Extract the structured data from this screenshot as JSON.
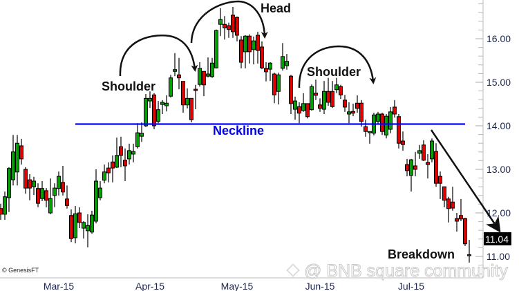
{
  "chart_data": {
    "type": "candlestick",
    "title": "",
    "xlabel": "",
    "ylabel": "",
    "ylim": [
      10.51,
      16.89
    ],
    "y_ticks": [
      "11.00",
      "12.00",
      "13.00",
      "14.00",
      "15.00",
      "16.00"
    ],
    "y_minor_step": 0.2,
    "x_ticks": [
      {
        "label": "Mar-15",
        "at_candle": 14
      },
      {
        "label": "Apr-15",
        "at_candle": 36
      },
      {
        "label": "May-15",
        "at_candle": 57
      },
      {
        "label": "Jun-15",
        "at_candle": 77
      },
      {
        "label": "Jul-15",
        "at_candle": 99
      }
    ],
    "grid": false,
    "colors": {
      "up": "#00a000",
      "down": "#e00000",
      "wick": "#000000",
      "neckline": "#0000ff"
    },
    "ohlc_fields": [
      "open",
      "high",
      "low",
      "close"
    ],
    "candles": [
      [
        12.1,
        12.21,
        11.84,
        11.97
      ],
      [
        11.97,
        12.49,
        11.84,
        12.37
      ],
      [
        12.35,
        13.05,
        12.02,
        13.02
      ],
      [
        12.76,
        13.79,
        12.63,
        13.4
      ],
      [
        12.94,
        13.79,
        12.63,
        13.6
      ],
      [
        13.54,
        13.7,
        13.11,
        13.24
      ],
      [
        13.0,
        13.05,
        12.44,
        12.57
      ],
      [
        12.76,
        12.89,
        12.29,
        12.57
      ],
      [
        12.6,
        12.83,
        12.41,
        12.73
      ],
      [
        12.56,
        12.68,
        12.13,
        12.22
      ],
      [
        12.33,
        12.73,
        12.27,
        12.56
      ],
      [
        12.51,
        12.57,
        12.13,
        12.29
      ],
      [
        12.0,
        12.79,
        11.97,
        12.33
      ],
      [
        12.4,
        12.68,
        12.13,
        12.57
      ],
      [
        12.56,
        12.95,
        12.4,
        12.84
      ],
      [
        12.7,
        13.08,
        12.4,
        12.48
      ],
      [
        12.32,
        12.63,
        12.1,
        12.17
      ],
      [
        11.94,
        12.08,
        11.33,
        11.41
      ],
      [
        11.43,
        12.16,
        11.3,
        11.98
      ],
      [
        12.0,
        12.13,
        11.65,
        11.78
      ],
      [
        11.65,
        11.81,
        11.41,
        11.78
      ],
      [
        11.59,
        11.97,
        11.21,
        11.71
      ],
      [
        11.56,
        12.05,
        11.52,
        11.95
      ],
      [
        11.81,
        13.0,
        11.76,
        12.73
      ],
      [
        12.35,
        12.73,
        12.29,
        12.57
      ],
      [
        12.75,
        13.11,
        12.68,
        12.94
      ],
      [
        13.03,
        13.16,
        12.7,
        12.92
      ],
      [
        13.17,
        13.32,
        12.7,
        13.03
      ],
      [
        13.05,
        13.73,
        13.03,
        13.32
      ],
      [
        13.52,
        13.75,
        13.05,
        13.32
      ],
      [
        13.21,
        13.48,
        12.73,
        13.08
      ],
      [
        13.24,
        13.59,
        13.11,
        13.43
      ],
      [
        13.35,
        13.59,
        13.16,
        13.41
      ],
      [
        13.52,
        14.06,
        13.48,
        13.84
      ],
      [
        13.76,
        14.08,
        13.63,
        13.83
      ],
      [
        14.0,
        14.73,
        13.97,
        14.63
      ],
      [
        14.57,
        14.79,
        14.41,
        14.63
      ],
      [
        14.71,
        14.75,
        13.92,
        14.0
      ],
      [
        14.1,
        14.57,
        14.06,
        14.37
      ],
      [
        14.49,
        14.59,
        14.27,
        14.54
      ],
      [
        14.46,
        14.7,
        14.33,
        14.52
      ],
      [
        14.68,
        15.17,
        14.65,
        15.1
      ],
      [
        15.25,
        15.67,
        15.14,
        15.29
      ],
      [
        15.17,
        15.56,
        14.84,
        15.1
      ],
      [
        15.02,
        15.02,
        14.3,
        14.48
      ],
      [
        14.48,
        14.86,
        14.4,
        14.63
      ],
      [
        14.63,
        14.63,
        14.08,
        14.14
      ],
      [
        14.84,
        14.94,
        14.38,
        14.81
      ],
      [
        14.95,
        15.46,
        14.9,
        15.32
      ],
      [
        15.25,
        15.25,
        14.68,
        14.94
      ],
      [
        15.14,
        15.57,
        15.11,
        15.19
      ],
      [
        15.13,
        15.56,
        15.1,
        15.44
      ],
      [
        15.33,
        16.21,
        15.32,
        16.19
      ],
      [
        16.33,
        16.7,
        16.06,
        16.44
      ],
      [
        16.33,
        16.52,
        15.98,
        16.25
      ],
      [
        16.3,
        16.37,
        16.02,
        16.21
      ],
      [
        16.54,
        16.73,
        16.02,
        16.16
      ],
      [
        16.49,
        16.51,
        15.94,
        16.08
      ],
      [
        15.97,
        16.06,
        15.32,
        15.46
      ],
      [
        15.7,
        16.08,
        15.32,
        16.06
      ],
      [
        16.06,
        16.1,
        15.43,
        15.7
      ],
      [
        15.75,
        16.05,
        15.41,
        15.95
      ],
      [
        16.08,
        16.16,
        15.43,
        15.73
      ],
      [
        15.81,
        15.94,
        15.3,
        15.33
      ],
      [
        15.32,
        15.46,
        15.02,
        15.24
      ],
      [
        15.3,
        15.46,
        15.03,
        15.44
      ],
      [
        15.19,
        15.22,
        14.52,
        14.71
      ],
      [
        14.79,
        15.22,
        14.49,
        15.17
      ],
      [
        15.32,
        15.9,
        15.27,
        15.59
      ],
      [
        15.38,
        15.65,
        15.29,
        15.48
      ],
      [
        15.14,
        15.17,
        14.27,
        14.51
      ],
      [
        14.38,
        14.67,
        14.14,
        14.57
      ],
      [
        14.44,
        14.54,
        14.06,
        14.29
      ],
      [
        14.35,
        14.75,
        14.32,
        14.51
      ],
      [
        14.51,
        14.51,
        14.17,
        14.21
      ],
      [
        14.37,
        14.95,
        14.35,
        14.9
      ],
      [
        14.75,
        15.06,
        14.59,
        14.7
      ],
      [
        14.48,
        14.63,
        14.32,
        14.4
      ],
      [
        14.38,
        15.03,
        14.27,
        14.79
      ],
      [
        14.79,
        15.1,
        14.46,
        14.54
      ],
      [
        14.79,
        15.03,
        14.41,
        14.44
      ],
      [
        14.83,
        15.1,
        14.75,
        14.94
      ],
      [
        14.9,
        14.94,
        14.62,
        14.71
      ],
      [
        14.59,
        14.71,
        14.32,
        14.43
      ],
      [
        14.27,
        14.54,
        14.06,
        14.32
      ],
      [
        14.33,
        14.51,
        14.22,
        14.29
      ],
      [
        14.52,
        14.7,
        14.3,
        14.4
      ],
      [
        14.52,
        14.59,
        13.98,
        14.1
      ],
      [
        13.98,
        14.14,
        13.75,
        13.87
      ],
      [
        13.84,
        13.87,
        13.59,
        13.87
      ],
      [
        13.83,
        14.3,
        13.78,
        14.25
      ],
      [
        14.1,
        14.32,
        14.03,
        14.27
      ],
      [
        14.27,
        14.3,
        13.79,
        13.87
      ],
      [
        13.79,
        14.27,
        13.71,
        14.22
      ],
      [
        13.92,
        14.43,
        13.83,
        14.32
      ],
      [
        14.43,
        14.59,
        14.19,
        14.27
      ],
      [
        14.21,
        14.27,
        13.48,
        13.6
      ],
      [
        13.65,
        13.87,
        13.43,
        13.57
      ],
      [
        13.11,
        13.24,
        12.84,
        12.97
      ],
      [
        12.86,
        13.24,
        12.49,
        13.22
      ],
      [
        13.08,
        13.4,
        12.84,
        13.0
      ],
      [
        13.37,
        13.56,
        13.24,
        13.43
      ],
      [
        13.56,
        13.67,
        13.19,
        13.21
      ],
      [
        13.16,
        13.35,
        12.79,
        13.11
      ],
      [
        13.24,
        13.71,
        13.16,
        13.65
      ],
      [
        13.41,
        13.6,
        12.6,
        12.68
      ],
      [
        12.84,
        12.95,
        12.32,
        12.68
      ],
      [
        12.6,
        12.6,
        12.13,
        12.29
      ],
      [
        12.32,
        12.37,
        11.78,
        12.1
      ],
      [
        12.25,
        12.6,
        12.05,
        12.11
      ],
      [
        11.87,
        12.0,
        11.57,
        11.81
      ],
      [
        11.94,
        12.32,
        11.81,
        11.86
      ],
      [
        11.87,
        11.89,
        11.24,
        11.29
      ],
      [
        11.04,
        11.38,
        10.86,
        11.04
      ]
    ],
    "neckline": {
      "label": "Neckline",
      "price": 14.04,
      "from_candle": 18,
      "to_candle": 112
    },
    "last_price_label": "11.04",
    "annotations": {
      "left_shoulder": "Shoulder",
      "head": "Head",
      "right_shoulder": "Shoulder",
      "breakdown": "Breakdown"
    },
    "credit": "© GenesisFT",
    "watermark": "@ BNB square community"
  }
}
